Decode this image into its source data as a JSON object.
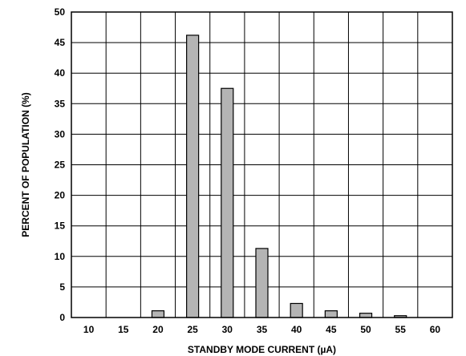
{
  "chart_data": {
    "type": "bar",
    "title": "",
    "xlabel": "STANDBY MODE CURRENT (µA)",
    "ylabel": "PERCENT OF POPULATION (%)",
    "categories": [
      "10",
      "15",
      "20",
      "25",
      "30",
      "35",
      "40",
      "45",
      "50",
      "55",
      "60"
    ],
    "values": [
      0,
      0,
      1.1,
      46.2,
      37.5,
      11.3,
      2.3,
      1.1,
      0.7,
      0.3,
      0
    ],
    "yticks": [
      "0",
      "5",
      "10",
      "15",
      "20",
      "25",
      "30",
      "35",
      "40",
      "45",
      "50"
    ],
    "ylim": [
      0,
      50
    ],
    "grid": true,
    "legend": "none",
    "colors": {
      "bar_fill": "#b4b4b4",
      "bar_stroke": "#000000",
      "grid": "#000000"
    }
  }
}
